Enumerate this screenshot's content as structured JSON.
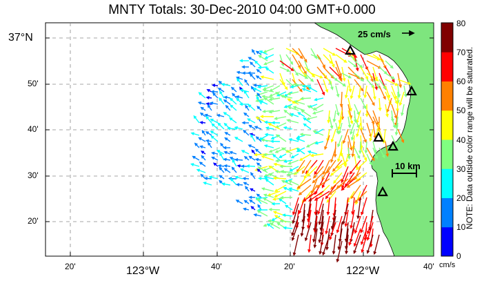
{
  "title": "MNTY Totals: 30-Dec-2010 04:00 GMT+0.000",
  "scale_label": "25 cm/s",
  "distance_label": "10 km",
  "colorbar": {
    "note": "NOTE: Data outside color range will be saturated.",
    "units": "cm/s",
    "ticks": [
      "0",
      "10",
      "20",
      "30",
      "40",
      "50",
      "60",
      "70",
      "80"
    ],
    "colors": [
      "#0000ff",
      "#0080ff",
      "#00ffff",
      "#80ff80",
      "#ffff00",
      "#ff8000",
      "#ff0000",
      "#800000"
    ]
  },
  "axes": {
    "lat_labels": [
      "37°N",
      "50'",
      "40'",
      "30'",
      "20'"
    ],
    "lon_labels": [
      "20'",
      "123°W",
      "40'",
      "20'",
      "122°W",
      "40'"
    ]
  },
  "map": {
    "land_color": "#7ee57e",
    "coast_color": "#000000",
    "stations": 5
  }
}
